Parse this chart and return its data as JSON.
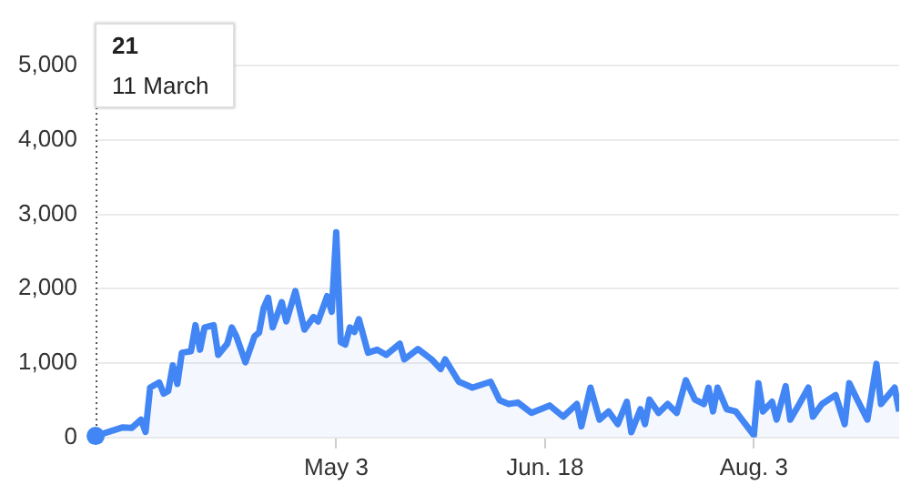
{
  "chart_data": {
    "type": "area",
    "x": [
      "--03-11",
      "--03-17",
      "--03-19",
      "--03-21",
      "--03-22",
      "--03-23",
      "--03-25",
      "--03-26",
      "--03-27",
      "--03-28",
      "--03-29",
      "--03-30",
      "--04-01",
      "--04-02",
      "--04-03",
      "--04-04",
      "--04-06",
      "--04-07",
      "--04-09",
      "--04-10",
      "--04-11",
      "--04-13",
      "--04-15",
      "--04-16",
      "--04-17",
      "--04-18",
      "--04-19",
      "--04-21",
      "--04-22",
      "--04-24",
      "--04-26",
      "--04-28",
      "--04-29",
      "--05-01",
      "--05-02",
      "--05-03",
      "--05-04",
      "--05-05",
      "--05-06",
      "--05-07",
      "--05-08",
      "--05-10",
      "--05-12",
      "--05-14",
      "--05-17",
      "--05-18",
      "--05-21",
      "--05-24",
      "--05-26",
      "--05-27",
      "--05-30",
      "--06-02",
      "--06-06",
      "--06-08",
      "--06-10",
      "--06-12",
      "--06-15",
      "--06-19",
      "--06-22",
      "--06-25",
      "--06-26",
      "--06-28",
      "--06-30",
      "--07-02",
      "--07-04",
      "--07-06",
      "--07-07",
      "--07-09",
      "--07-10",
      "--07-11",
      "--07-13",
      "--07-15",
      "--07-17",
      "--07-19",
      "--07-21",
      "--07-23",
      "--07-24",
      "--07-25",
      "--07-26",
      "--07-28",
      "--07-30",
      "--08-03",
      "--08-04",
      "--08-05",
      "--08-07",
      "--08-08",
      "--08-10",
      "--08-11",
      "--08-13",
      "--08-15",
      "--08-16",
      "--08-18",
      "--08-21",
      "--08-23",
      "--08-24",
      "--08-26",
      "--08-28",
      "--08-30",
      "--08-31",
      "--09-03",
      "--09-04"
    ],
    "series": [
      {
        "color": "#4285f4",
        "values": [
          21,
          136,
          130,
          240,
          75,
          670,
          740,
          590,
          625,
          970,
          720,
          1140,
          1160,
          1510,
          1180,
          1480,
          1510,
          1110,
          1260,
          1480,
          1360,
          1010,
          1360,
          1410,
          1740,
          1880,
          1480,
          1820,
          1560,
          1970,
          1450,
          1620,
          1560,
          1900,
          1690,
          2760,
          1280,
          1250,
          1480,
          1420,
          1590,
          1140,
          1180,
          1110,
          1260,
          1050,
          1190,
          1050,
          920,
          1050,
          750,
          670,
          750,
          500,
          450,
          470,
          330,
          430,
          280,
          450,
          150,
          670,
          240,
          350,
          180,
          480,
          70,
          380,
          180,
          510,
          330,
          450,
          330,
          770,
          510,
          450,
          670,
          350,
          670,
          380,
          350,
          30,
          730,
          350,
          480,
          240,
          690,
          240,
          450,
          670,
          280,
          450,
          570,
          180,
          730,
          480,
          240,
          990,
          450,
          670,
          350
        ]
      }
    ],
    "xlim": [
      "--03-11",
      "--09-04"
    ],
    "xticks": [
      {
        "value": "--05-03",
        "label": "May 3"
      },
      {
        "value": "--06-18",
        "label": "Jun. 18"
      },
      {
        "value": "--08-03",
        "label": "Aug. 3"
      }
    ],
    "ylim": [
      0,
      5000
    ],
    "yticks": [
      0,
      {
        "value": 1000,
        "label": "1,000"
      },
      {
        "value": 2000,
        "label": "2,000"
      },
      {
        "value": 3000,
        "label": "3,000"
      },
      {
        "value": 4000,
        "label": "4,000"
      },
      {
        "value": 5000,
        "label": "5,000"
      }
    ],
    "grid": "y",
    "legend": false,
    "annotations": [
      "21",
      "11 March"
    ]
  }
}
